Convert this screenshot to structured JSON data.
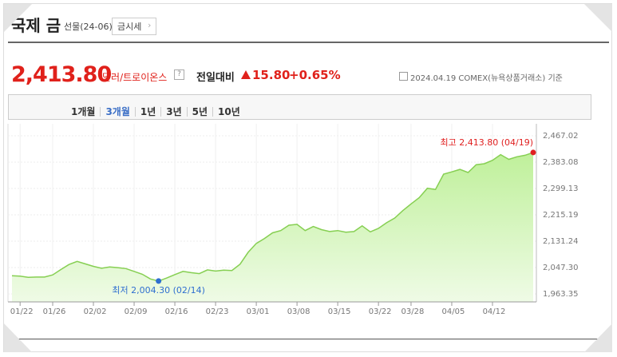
{
  "header": {
    "title": "국제 금",
    "subtitle": "선물(24-06)",
    "button": "금시세"
  },
  "quote": {
    "price": "2,413.80",
    "unit": "달러/트로이온스",
    "change_label": "전일대비",
    "change": "15.80",
    "change_percent": "+0.65%",
    "as_of": "2024.04.19 COMEX(뉴욕상품거래소) 기준"
  },
  "tabs": {
    "items": [
      "1개월",
      "3개월",
      "1년",
      "3년",
      "5년",
      "10년"
    ],
    "active": 1
  },
  "chart_data": {
    "type": "area",
    "categories": [
      null,
      "01/22",
      null,
      null,
      null,
      "01/26",
      null,
      null,
      null,
      null,
      "02/02",
      null,
      null,
      null,
      null,
      "02/09",
      null,
      null,
      null,
      null,
      "02/16",
      null,
      null,
      null,
      null,
      "02/23",
      null,
      null,
      null,
      null,
      "03/01",
      null,
      null,
      null,
      null,
      "03/08",
      null,
      null,
      null,
      null,
      "03/15",
      null,
      null,
      null,
      null,
      "03/22",
      null,
      null,
      null,
      "03/28",
      null,
      null,
      null,
      null,
      "04/05",
      null,
      null,
      null,
      null,
      "04/12",
      null,
      null,
      null,
      null,
      null
    ],
    "series": [
      {
        "color": "#86cf52",
        "values": [
          2021,
          2020,
          2016,
          2017,
          2017,
          2024,
          2041,
          2057,
          2067,
          2059,
          2051,
          2045,
          2049,
          2047,
          2044,
          2035,
          2026,
          2011,
          2004.3,
          2014,
          2025,
          2035,
          2031,
          2028,
          2040,
          2036,
          2039,
          2038,
          2058,
          2096,
          2124,
          2140,
          2158,
          2165,
          2182,
          2185,
          2165,
          2178,
          2168,
          2162,
          2165,
          2160,
          2162,
          2180,
          2161,
          2172,
          2190,
          2205,
          2229,
          2250,
          2270,
          2300,
          2296,
          2345,
          2352,
          2360,
          2350,
          2375,
          2378,
          2389,
          2407,
          2392,
          2400,
          2405,
          2413.8
        ]
      }
    ],
    "ylim": [
      1963.35,
      2467.02
    ],
    "yticks": [
      {
        "value": 2467.02,
        "label": "2,467.02"
      },
      {
        "value": 2383.08,
        "label": "2,383.08"
      },
      {
        "value": 2299.13,
        "label": "2,299.13"
      },
      {
        "value": 2215.19,
        "label": "2,215.19"
      },
      {
        "value": 2131.24,
        "label": "2,131.24"
      },
      {
        "value": 2047.3,
        "label": "2,047.30"
      },
      {
        "value": 1963.35,
        "label": "1,963.35"
      }
    ],
    "grid": true,
    "annotations": [
      {
        "text": "최고 2,413.80 (04/19)",
        "index": 64,
        "color": "#e02020"
      },
      {
        "text": "최저 2,004.30 (02/14)",
        "index": 18,
        "color": "#2f6fd0"
      }
    ]
  }
}
